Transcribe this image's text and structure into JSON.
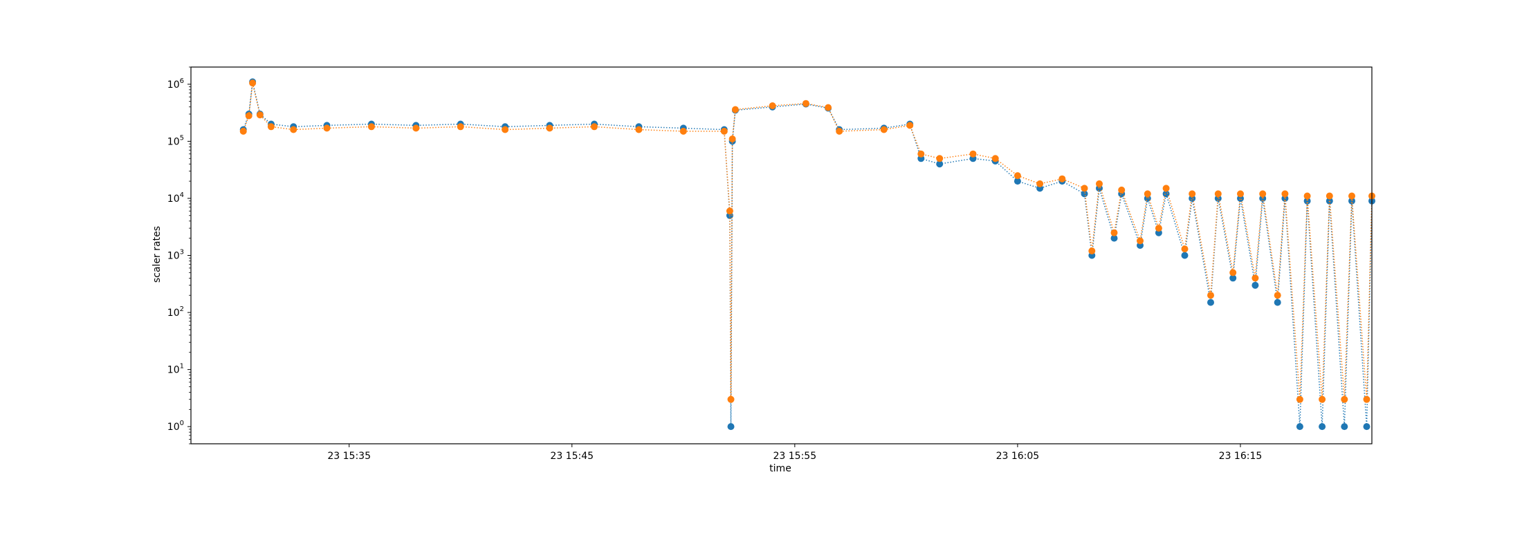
{
  "chart_data": {
    "type": "scatter",
    "title": "",
    "xlabel": "time",
    "ylabel": "scaler rates",
    "yscale": "log",
    "ylim": [
      0.5,
      2000000
    ],
    "xlim": [
      "15:27:54",
      "16:20:54"
    ],
    "grid": false,
    "connector": "dotted",
    "x_tick_labels": [
      "23 15:35",
      "23 15:45",
      "23 15:55",
      "23 16:05",
      "23 16:15"
    ],
    "x_tick_times": [
      "15:35",
      "15:45",
      "15:55",
      "16:05",
      "16:15"
    ],
    "y_ticks": [
      {
        "value": 1,
        "base": "10",
        "exp": "0"
      },
      {
        "value": 10,
        "base": "10",
        "exp": "1"
      },
      {
        "value": 100,
        "base": "10",
        "exp": "2"
      },
      {
        "value": 1000,
        "base": "10",
        "exp": "3"
      },
      {
        "value": 10000,
        "base": "10",
        "exp": "4"
      },
      {
        "value": 100000,
        "base": "10",
        "exp": "5"
      },
      {
        "value": 1000000,
        "base": "10",
        "exp": "6"
      }
    ],
    "series": [
      {
        "color": "#1f77b4",
        "points": [
          [
            "15:30:15",
            160000
          ],
          [
            "15:30:30",
            300000
          ],
          [
            "15:30:40",
            1100000
          ],
          [
            "15:31:00",
            300000
          ],
          [
            "15:31:30",
            200000
          ],
          [
            "15:32:30",
            180000
          ],
          [
            "15:34:00",
            190000
          ],
          [
            "15:36:00",
            200000
          ],
          [
            "15:38:00",
            190000
          ],
          [
            "15:40:00",
            200000
          ],
          [
            "15:42:00",
            180000
          ],
          [
            "15:44:00",
            190000
          ],
          [
            "15:46:00",
            200000
          ],
          [
            "15:48:00",
            180000
          ],
          [
            "15:50:00",
            170000
          ],
          [
            "15:51:50",
            160000
          ],
          [
            "15:52:05",
            5000
          ],
          [
            "15:52:08",
            1
          ],
          [
            "15:52:12",
            100000
          ],
          [
            "15:52:20",
            350000
          ],
          [
            "15:54:00",
            400000
          ],
          [
            "15:55:30",
            450000
          ],
          [
            "15:56:30",
            380000
          ],
          [
            "15:57:00",
            160000
          ],
          [
            "15:59:00",
            170000
          ],
          [
            "16:00:10",
            200000
          ],
          [
            "16:00:40",
            50000
          ],
          [
            "16:01:30",
            40000
          ],
          [
            "16:03:00",
            50000
          ],
          [
            "16:04:00",
            45000
          ],
          [
            "16:05:00",
            20000
          ],
          [
            "16:06:00",
            15000
          ],
          [
            "16:07:00",
            20000
          ],
          [
            "16:08:00",
            12000
          ],
          [
            "16:08:20",
            1000
          ],
          [
            "16:08:40",
            15000
          ],
          [
            "16:09:20",
            2000
          ],
          [
            "16:09:40",
            12000
          ],
          [
            "16:10:30",
            1500
          ],
          [
            "16:10:50",
            10000
          ],
          [
            "16:11:20",
            2500
          ],
          [
            "16:11:40",
            12000
          ],
          [
            "16:12:30",
            1000
          ],
          [
            "16:12:50",
            10000
          ],
          [
            "16:13:40",
            150
          ],
          [
            "16:14:00",
            10000
          ],
          [
            "16:14:40",
            400
          ],
          [
            "16:15:00",
            10000
          ],
          [
            "16:15:40",
            300
          ],
          [
            "16:16:00",
            10000
          ],
          [
            "16:16:40",
            150
          ],
          [
            "16:17:00",
            10000
          ],
          [
            "16:17:40",
            1
          ],
          [
            "16:18:00",
            9000
          ],
          [
            "16:18:40",
            1
          ],
          [
            "16:19:00",
            9000
          ],
          [
            "16:19:40",
            1
          ],
          [
            "16:20:00",
            9000
          ],
          [
            "16:20:40",
            1
          ],
          [
            "16:20:54",
            9000
          ]
        ]
      },
      {
        "color": "#ff7f0e",
        "points": [
          [
            "15:30:15",
            150000
          ],
          [
            "15:30:30",
            280000
          ],
          [
            "15:30:40",
            1050000
          ],
          [
            "15:31:00",
            290000
          ],
          [
            "15:31:30",
            180000
          ],
          [
            "15:32:30",
            160000
          ],
          [
            "15:34:00",
            170000
          ],
          [
            "15:36:00",
            180000
          ],
          [
            "15:38:00",
            170000
          ],
          [
            "15:40:00",
            180000
          ],
          [
            "15:42:00",
            160000
          ],
          [
            "15:44:00",
            170000
          ],
          [
            "15:46:00",
            180000
          ],
          [
            "15:48:00",
            160000
          ],
          [
            "15:50:00",
            150000
          ],
          [
            "15:51:50",
            150000
          ],
          [
            "15:52:05",
            6000
          ],
          [
            "15:52:08",
            3
          ],
          [
            "15:52:12",
            110000
          ],
          [
            "15:52:20",
            360000
          ],
          [
            "15:54:00",
            420000
          ],
          [
            "15:55:30",
            460000
          ],
          [
            "15:56:30",
            390000
          ],
          [
            "15:57:00",
            150000
          ],
          [
            "15:59:00",
            160000
          ],
          [
            "16:00:10",
            190000
          ],
          [
            "16:00:40",
            60000
          ],
          [
            "16:01:30",
            50000
          ],
          [
            "16:03:00",
            60000
          ],
          [
            "16:04:00",
            50000
          ],
          [
            "16:05:00",
            25000
          ],
          [
            "16:06:00",
            18000
          ],
          [
            "16:07:00",
            22000
          ],
          [
            "16:08:00",
            15000
          ],
          [
            "16:08:20",
            1200
          ],
          [
            "16:08:40",
            18000
          ],
          [
            "16:09:20",
            2500
          ],
          [
            "16:09:40",
            14000
          ],
          [
            "16:10:30",
            1800
          ],
          [
            "16:10:50",
            12000
          ],
          [
            "16:11:20",
            3000
          ],
          [
            "16:11:40",
            15000
          ],
          [
            "16:12:30",
            1300
          ],
          [
            "16:12:50",
            12000
          ],
          [
            "16:13:40",
            200
          ],
          [
            "16:14:00",
            12000
          ],
          [
            "16:14:40",
            500
          ],
          [
            "16:15:00",
            12000
          ],
          [
            "16:15:40",
            400
          ],
          [
            "16:16:00",
            12000
          ],
          [
            "16:16:40",
            200
          ],
          [
            "16:17:00",
            12000
          ],
          [
            "16:17:40",
            3
          ],
          [
            "16:18:00",
            11000
          ],
          [
            "16:18:40",
            3
          ],
          [
            "16:19:00",
            11000
          ],
          [
            "16:19:40",
            3
          ],
          [
            "16:20:00",
            11000
          ],
          [
            "16:20:40",
            3
          ],
          [
            "16:20:54",
            11000
          ]
        ]
      }
    ]
  }
}
